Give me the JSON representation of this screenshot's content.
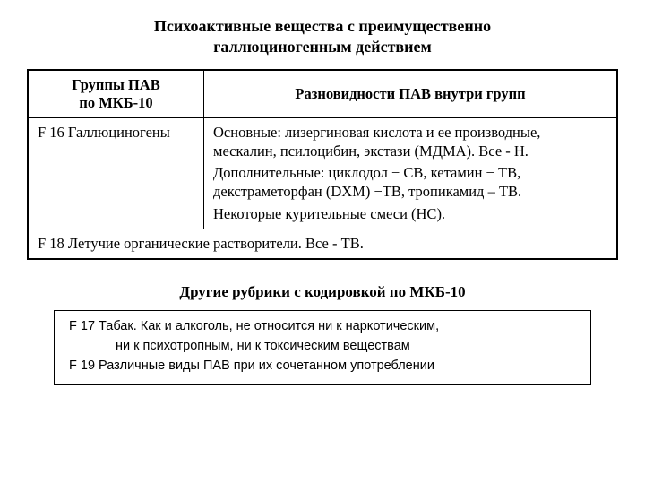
{
  "title_line1": "Психоактивные вещества с преимущественно",
  "title_line2": "галлюциногенным действием",
  "table": {
    "header_col1_l1": "Группы ПАВ",
    "header_col1_l2": "по МКБ-10",
    "header_col2": "Разновидности ПАВ внутри групп",
    "row1_col1": "F 16   Галлюциногены",
    "row1_p1": "Основные: лизергиновая кислота и ее производные, мескалин, псилоцибин, экстази (МДМА). Все - Н.",
    "row1_p2": "Дополнительные: циклодол  − СВ, кетамин − ТВ, декстраметорфан (DXM) −ТВ, тропикамид – ТВ.",
    "row1_p3": "Некоторые курительные смеси (НС).",
    "row2": "F 18   Летучие органические растворители. Все - ТВ."
  },
  "subtitle": "Другие рубрики с кодировкой по МКБ-10",
  "box": {
    "l1": "F 17  Табак. Как и алкоголь, не относится ни к наркотическим,",
    "l2": "ни к психотропным, ни к токсическим веществам",
    "l3": "F 19   Различные виды ПАВ при их сочетанном употреблении"
  },
  "colors": {
    "background": "#ffffff",
    "text": "#000000",
    "border": "#000000"
  }
}
